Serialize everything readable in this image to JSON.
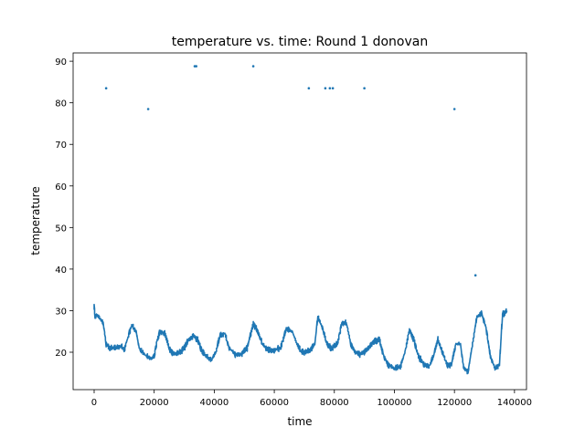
{
  "chart_data": {
    "type": "scatter",
    "title": "temperature vs. time: Round 1 donovan",
    "xlabel": "time",
    "ylabel": "temperature",
    "xlim": [
      -7000,
      144000
    ],
    "ylim": [
      11,
      92
    ],
    "xticks": [
      0,
      20000,
      40000,
      60000,
      80000,
      100000,
      120000,
      140000
    ],
    "yticks": [
      20,
      30,
      40,
      50,
      60,
      70,
      80,
      90
    ],
    "grid": false,
    "legend": "none",
    "series_color": "#1f77b4",
    "series": [
      {
        "trace": [
          [
            0,
            31
          ],
          [
            300,
            28.5
          ],
          [
            1000,
            29
          ],
          [
            2000,
            28
          ],
          [
            3000,
            27
          ],
          [
            4000,
            22
          ],
          [
            5000,
            21
          ],
          [
            7000,
            21
          ],
          [
            9000,
            21.5
          ],
          [
            10000,
            20.5
          ],
          [
            11000,
            23
          ],
          [
            12500,
            26.5
          ],
          [
            14000,
            25
          ],
          [
            15000,
            21
          ],
          [
            16000,
            20
          ],
          [
            17500,
            19
          ],
          [
            19000,
            18.5
          ],
          [
            20000,
            19
          ],
          [
            21000,
            23
          ],
          [
            22000,
            25
          ],
          [
            23500,
            24.5
          ],
          [
            25000,
            21
          ],
          [
            26000,
            20
          ],
          [
            27000,
            19.5
          ],
          [
            28500,
            20
          ],
          [
            30000,
            21
          ],
          [
            31500,
            23
          ],
          [
            33000,
            24
          ],
          [
            34500,
            23
          ],
          [
            36000,
            20
          ],
          [
            37500,
            19
          ],
          [
            39000,
            18
          ],
          [
            40500,
            20
          ],
          [
            42000,
            24
          ],
          [
            43500,
            24.5
          ],
          [
            45000,
            21
          ],
          [
            47000,
            19.5
          ],
          [
            49000,
            19.5
          ],
          [
            51000,
            21
          ],
          [
            53000,
            27
          ],
          [
            54500,
            25
          ],
          [
            56000,
            22
          ],
          [
            58000,
            20.5
          ],
          [
            60000,
            20.5
          ],
          [
            62000,
            21
          ],
          [
            64000,
            25.5
          ],
          [
            66000,
            25
          ],
          [
            67500,
            22
          ],
          [
            69000,
            20
          ],
          [
            70500,
            20
          ],
          [
            72000,
            20.5
          ],
          [
            73500,
            22
          ],
          [
            74500,
            28.5
          ],
          [
            76000,
            26
          ],
          [
            77500,
            22
          ],
          [
            79000,
            21
          ],
          [
            81000,
            22
          ],
          [
            82500,
            27
          ],
          [
            84000,
            27
          ],
          [
            85500,
            22
          ],
          [
            87000,
            20
          ],
          [
            88500,
            19.5
          ],
          [
            90000,
            20
          ],
          [
            91500,
            21
          ],
          [
            93000,
            22.5
          ],
          [
            95000,
            23
          ],
          [
            96500,
            19
          ],
          [
            98000,
            17
          ],
          [
            100000,
            16
          ],
          [
            102000,
            16.5
          ],
          [
            103500,
            20
          ],
          [
            105000,
            25.5
          ],
          [
            106500,
            23
          ],
          [
            108000,
            19
          ],
          [
            110000,
            17
          ],
          [
            111500,
            16.5
          ],
          [
            113000,
            19
          ],
          [
            114500,
            23
          ],
          [
            116000,
            20
          ],
          [
            117500,
            17
          ],
          [
            119000,
            17
          ],
          [
            120500,
            22
          ],
          [
            122000,
            22
          ],
          [
            123000,
            16.5
          ],
          [
            124500,
            15
          ],
          [
            126000,
            22
          ],
          [
            127500,
            28.5
          ],
          [
            129000,
            29.5
          ],
          [
            130500,
            26
          ],
          [
            132000,
            19
          ],
          [
            133500,
            16
          ],
          [
            135000,
            17
          ],
          [
            136000,
            29
          ],
          [
            137500,
            30
          ]
        ],
        "outliers": [
          [
            4000,
            83.5
          ],
          [
            18000,
            78.5
          ],
          [
            33500,
            88.8
          ],
          [
            34000,
            88.8
          ],
          [
            53000,
            88.8
          ],
          [
            71500,
            83.5
          ],
          [
            77000,
            83.5
          ],
          [
            78500,
            83.5
          ],
          [
            79500,
            83.5
          ],
          [
            90000,
            83.5
          ],
          [
            120000,
            78.5
          ],
          [
            127000,
            38.5
          ]
        ]
      }
    ]
  }
}
